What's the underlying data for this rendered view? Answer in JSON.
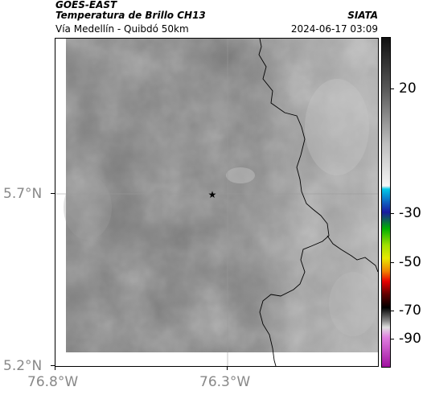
{
  "header": {
    "satellite": "GOES-EAST",
    "product": "Temperatura de Brillo CH13",
    "org": "SIATA",
    "route": "Vía Medellín - Quibdó 50km",
    "datetime": "2024-06-17 03:09"
  },
  "map": {
    "lat_ticks": [
      "5.7°N",
      "5.2°N"
    ],
    "lon_ticks": [
      "76.8°W",
      "76.3°W"
    ],
    "marker_icon": "star-icon",
    "marker_symbol": "★"
  },
  "colorbar": {
    "labels": [
      "20",
      "-30",
      "-50",
      "-70",
      "-90"
    ],
    "colors": {
      "gray_warm": "#333333",
      "gray_cold": "#f0f0f0",
      "cyan": "#00c8e8",
      "blue": "#1a1aa0",
      "green": "#00c800",
      "yellow": "#e8e800",
      "red": "#e80000",
      "black": "#000000",
      "magenta": "#c020c0"
    }
  }
}
